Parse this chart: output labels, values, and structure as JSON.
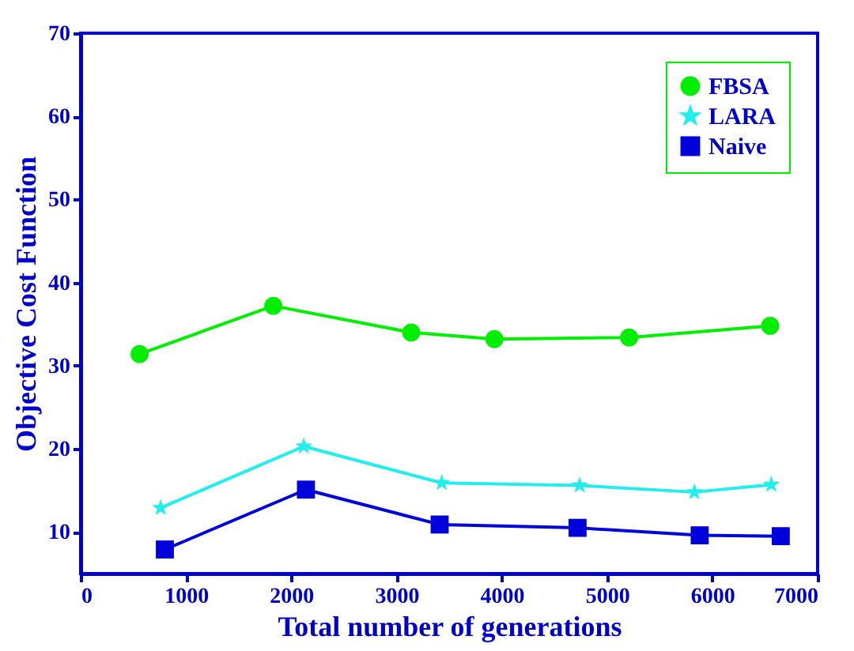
{
  "chart_data": {
    "type": "line",
    "xlabel": "Total number of generations",
    "ylabel": "Objective Cost  Function",
    "xlim": [
      0,
      7000
    ],
    "xticks": [
      0,
      1000,
      2000,
      3000,
      4000,
      5000,
      6000,
      7000
    ],
    "ylim": [
      5,
      70
    ],
    "yticks": [
      10,
      20,
      30,
      40,
      50,
      60,
      70
    ],
    "grid": false,
    "legend": "top right",
    "line_style": "solid",
    "series": [
      {
        "name": "FBSA",
        "color": "#00ee00",
        "marker": "circle",
        "x": [
          560,
          1830,
          3140,
          3930,
          5210,
          6550
        ],
        "values": [
          31.4,
          37.2,
          34.0,
          33.2,
          33.4,
          34.8
        ]
      },
      {
        "name": "LARA",
        "color": "#22eeee",
        "marker": "star",
        "x": [
          760,
          2120,
          3430,
          4740,
          5830,
          6560
        ],
        "values": [
          12.9,
          20.3,
          15.9,
          15.6,
          14.8,
          15.7
        ]
      },
      {
        "name": "Naive",
        "color": "#0000dd",
        "marker": "square",
        "x": [
          800,
          2140,
          3410,
          4720,
          5880,
          6650
        ],
        "values": [
          7.9,
          15.1,
          10.9,
          10.5,
          9.6,
          9.5
        ]
      }
    ]
  }
}
